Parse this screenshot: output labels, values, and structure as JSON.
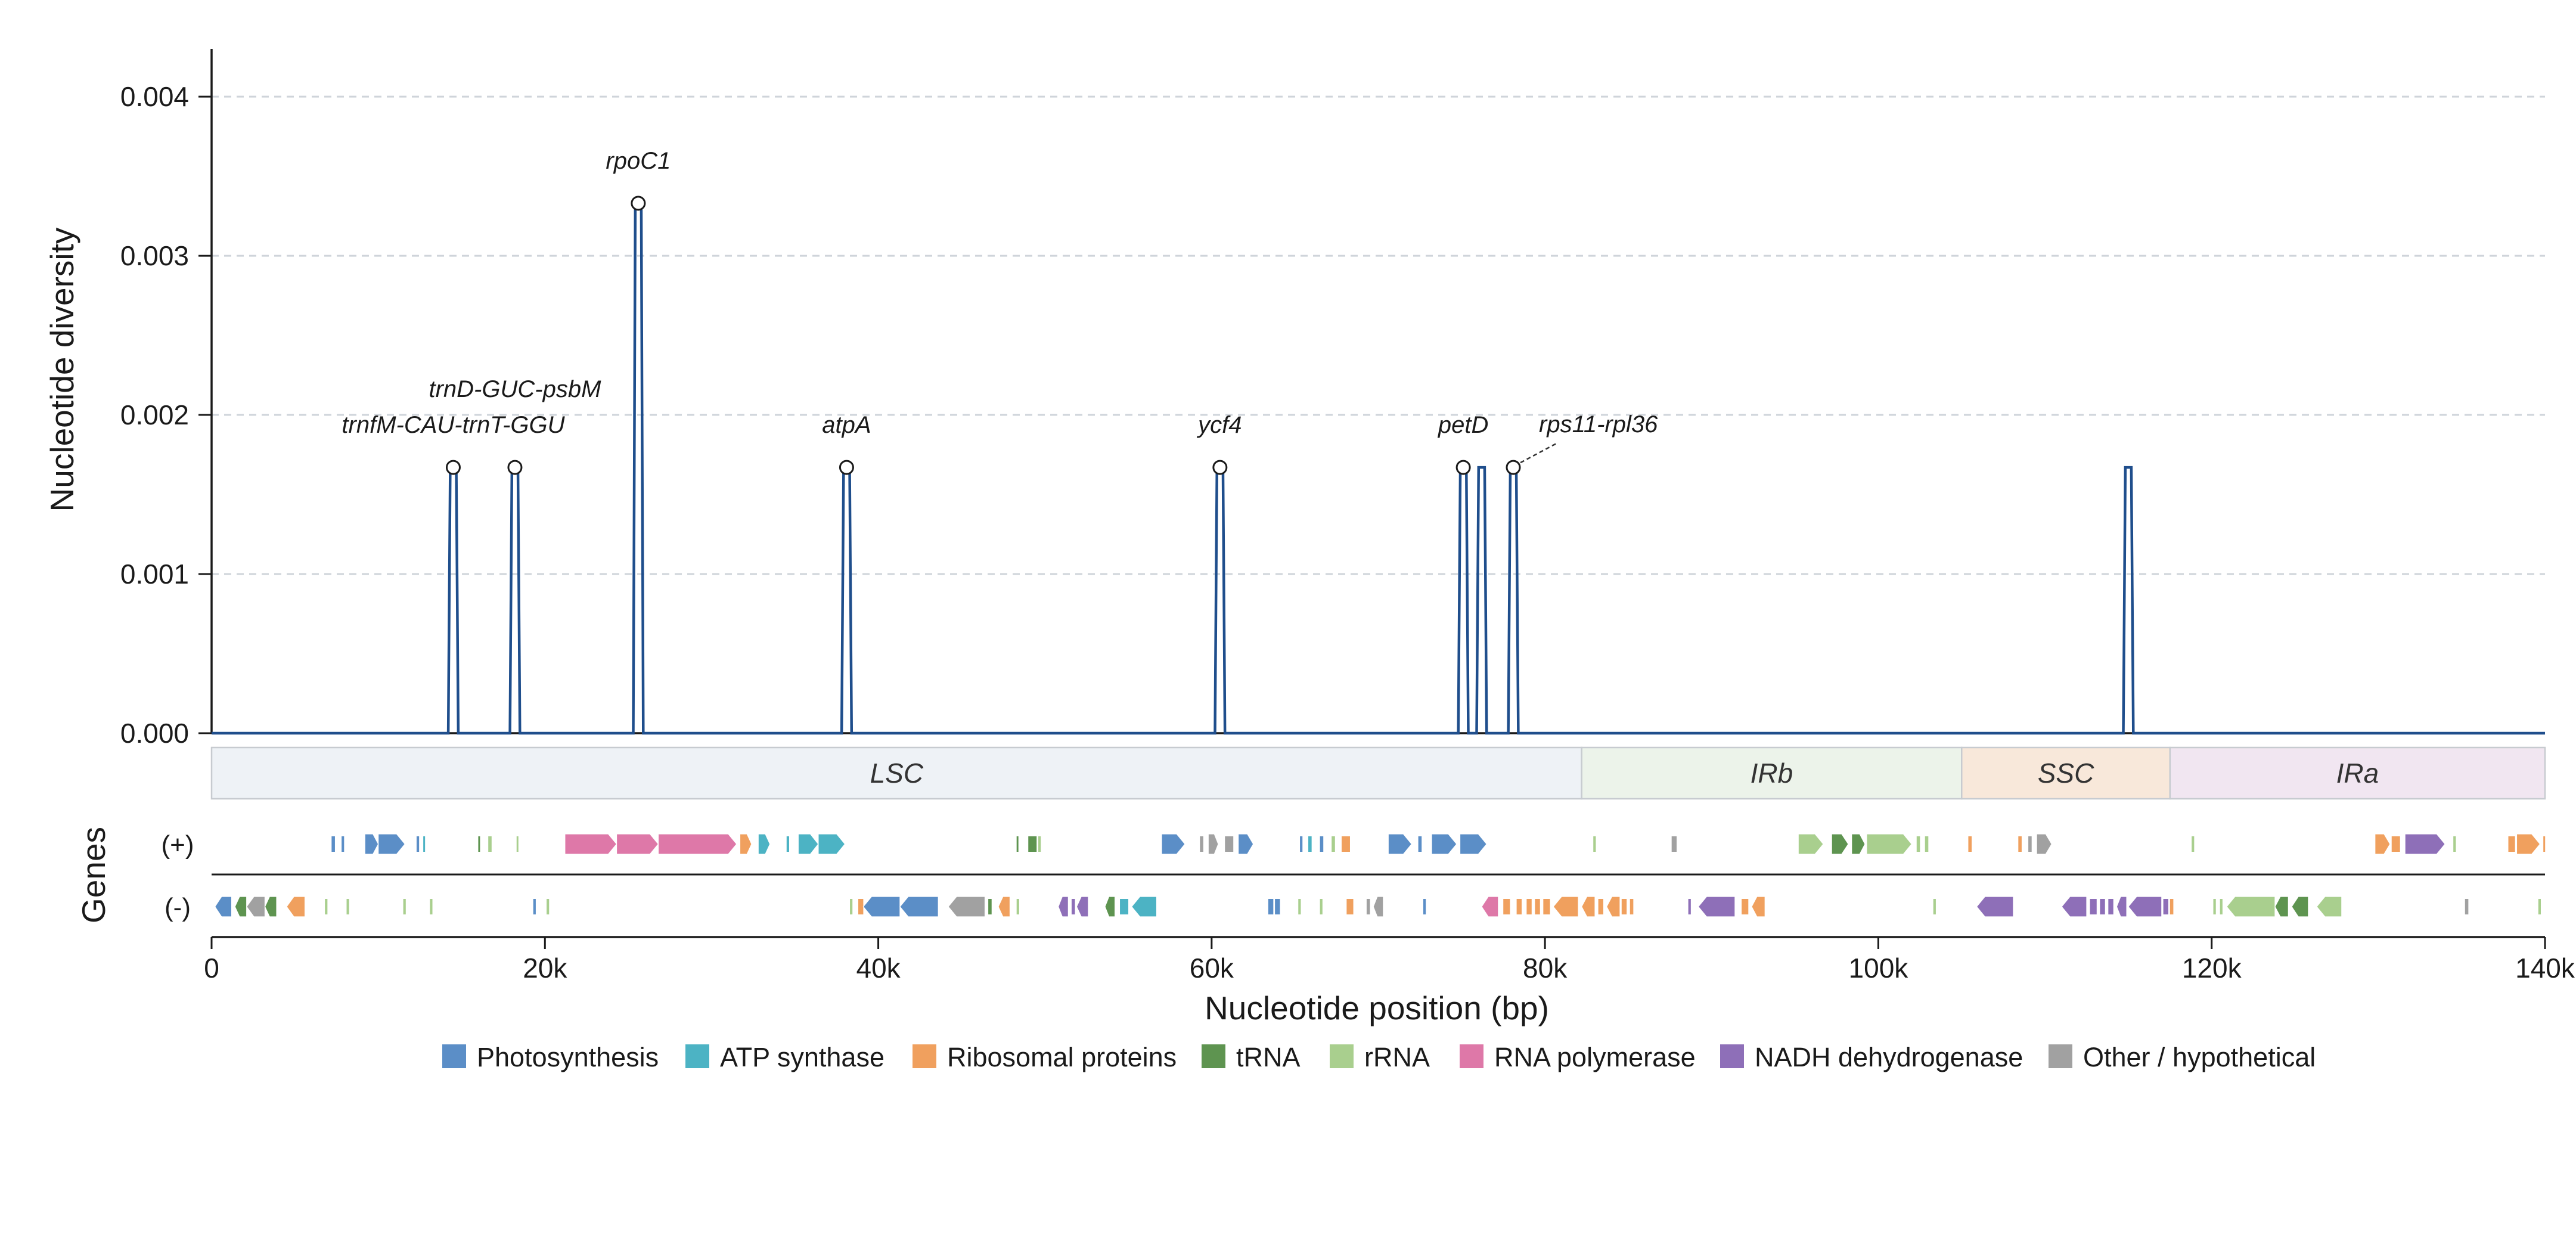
{
  "chart_data": {
    "type": "line",
    "ylabel": "Nucleotide diversity",
    "xlabel": "Nucleotide position (bp)",
    "genes_label": "Genes",
    "strand_labels": [
      "(+)",
      "(-)"
    ],
    "xlim": [
      0,
      140000
    ],
    "ylim": [
      0,
      0.0043
    ],
    "yticks": [
      0,
      0.001,
      0.002,
      0.003,
      0.004
    ],
    "ytick_labels": [
      "0.000",
      "0.001",
      "0.002",
      "0.003",
      "0.004"
    ],
    "xticks": [
      0,
      20000,
      40000,
      60000,
      80000,
      100000,
      120000,
      140000
    ],
    "xtick_labels": [
      "0",
      "20k",
      "40k",
      "60k",
      "80k",
      "100k",
      "120k",
      "140k"
    ],
    "grid": "horizontal dashed",
    "line_color": "#1f4e8c",
    "peaks": [
      {
        "start": 14200,
        "end": 14800,
        "pi": 0.00167,
        "label": "trnfM-CAU-trnT-GGU",
        "marked": true
      },
      {
        "start": 17900,
        "end": 18500,
        "pi": 0.00167,
        "label": "trnD-GUC-psbM",
        "marked": true
      },
      {
        "start": 25300,
        "end": 25900,
        "pi": 0.00333,
        "label": "rpoC1",
        "marked": true
      },
      {
        "start": 37800,
        "end": 38400,
        "pi": 0.00167,
        "label": "atpA",
        "marked": true
      },
      {
        "start": 60200,
        "end": 60800,
        "pi": 0.00167,
        "label": "ycf4",
        "marked": true
      },
      {
        "start": 74800,
        "end": 75400,
        "pi": 0.00167,
        "label": "petD",
        "marked": true
      },
      {
        "start": 75900,
        "end": 76500,
        "pi": 0.00167,
        "label": "",
        "marked": false
      },
      {
        "start": 77800,
        "end": 78400,
        "pi": 0.00167,
        "label": "rps11-rpl36",
        "marked": true
      },
      {
        "start": 114700,
        "end": 115300,
        "pi": 0.00167,
        "label": "",
        "marked": false
      }
    ],
    "regions": [
      {
        "name": "LSC",
        "start": 0,
        "end": 82200,
        "color": "#eef2f6"
      },
      {
        "name": "IRb",
        "start": 82200,
        "end": 105000,
        "color": "#ecf3ea"
      },
      {
        "name": "SSC",
        "start": 105000,
        "end": 117500,
        "color": "#f8e8da"
      },
      {
        "name": "IRa",
        "start": 117500,
        "end": 140000,
        "color": "#f1e6f1"
      }
    ],
    "legend": [
      {
        "name": "Photosynthesis",
        "color": "#5b8ec7"
      },
      {
        "name": "ATP synthase",
        "color": "#4cb3c4"
      },
      {
        "name": "Ribosomal proteins",
        "color": "#f0a05e"
      },
      {
        "name": "tRNA",
        "color": "#5e9450"
      },
      {
        "name": "rRNA",
        "color": "#a9cf8e"
      },
      {
        "name": "RNA polymerase",
        "color": "#de78a8"
      },
      {
        "name": "NADH dehydrogenase",
        "color": "#8e6fb8"
      },
      {
        "name": "Other / hypothetical",
        "color": "#a1a1a1"
      }
    ],
    "genes_plus": [
      {
        "s": 7200,
        "e": 7400,
        "c": 0
      },
      {
        "s": 7800,
        "e": 7950,
        "c": 0
      },
      {
        "s": 9200,
        "e": 10000,
        "c": 0
      },
      {
        "s": 10000,
        "e": 11600,
        "c": 0
      },
      {
        "s": 12300,
        "e": 12450,
        "c": 0
      },
      {
        "s": 12700,
        "e": 12800,
        "c": 1
      },
      {
        "s": 16000,
        "e": 16100,
        "c": 3
      },
      {
        "s": 16600,
        "e": 16800,
        "c": 4
      },
      {
        "s": 18300,
        "e": 18400,
        "c": 4
      },
      {
        "s": 21200,
        "e": 24300,
        "c": 5
      },
      {
        "s": 24300,
        "e": 26800,
        "c": 5
      },
      {
        "s": 26800,
        "e": 31500,
        "c": 5
      },
      {
        "s": 31700,
        "e": 32400,
        "c": 2
      },
      {
        "s": 32800,
        "e": 33500,
        "c": 1
      },
      {
        "s": 34500,
        "e": 34650,
        "c": 1
      },
      {
        "s": 35200,
        "e": 36400,
        "c": 1
      },
      {
        "s": 36400,
        "e": 38000,
        "c": 1
      },
      {
        "s": 48300,
        "e": 48400,
        "c": 3
      },
      {
        "s": 49000,
        "e": 49500,
        "c": 3
      },
      {
        "s": 49600,
        "e": 49750,
        "c": 4
      },
      {
        "s": 57000,
        "e": 58400,
        "c": 0
      },
      {
        "s": 59300,
        "e": 59500,
        "c": 7
      },
      {
        "s": 59800,
        "e": 60400,
        "c": 7
      },
      {
        "s": 60800,
        "e": 61300,
        "c": 7
      },
      {
        "s": 61600,
        "e": 62500,
        "c": 0
      },
      {
        "s": 65300,
        "e": 65450,
        "c": 0
      },
      {
        "s": 65800,
        "e": 66000,
        "c": 1
      },
      {
        "s": 66500,
        "e": 66700,
        "c": 0
      },
      {
        "s": 67200,
        "e": 67400,
        "c": 4
      },
      {
        "s": 67800,
        "e": 68300,
        "c": 2
      },
      {
        "s": 70600,
        "e": 72000,
        "c": 0
      },
      {
        "s": 72400,
        "e": 72600,
        "c": 0
      },
      {
        "s": 73200,
        "e": 74700,
        "c": 0
      },
      {
        "s": 74900,
        "e": 76500,
        "c": 0
      },
      {
        "s": 82900,
        "e": 83050,
        "c": 4
      },
      {
        "s": 87600,
        "e": 87900,
        "c": 7
      },
      {
        "s": 95200,
        "e": 96700,
        "c": 4
      },
      {
        "s": 97200,
        "e": 98200,
        "c": 3
      },
      {
        "s": 98400,
        "e": 99200,
        "c": 3
      },
      {
        "s": 99300,
        "e": 102000,
        "c": 4
      },
      {
        "s": 102300,
        "e": 102500,
        "c": 4
      },
      {
        "s": 102800,
        "e": 103000,
        "c": 4
      },
      {
        "s": 105400,
        "e": 105600,
        "c": 2
      },
      {
        "s": 108400,
        "e": 108600,
        "c": 2
      },
      {
        "s": 109000,
        "e": 109200,
        "c": 7
      },
      {
        "s": 109500,
        "e": 110400,
        "c": 7
      },
      {
        "s": 118800,
        "e": 118950,
        "c": 4
      },
      {
        "s": 129800,
        "e": 130700,
        "c": 2
      },
      {
        "s": 130800,
        "e": 131300,
        "c": 2
      },
      {
        "s": 131600,
        "e": 134000,
        "c": 6
      },
      {
        "s": 134500,
        "e": 134650,
        "c": 4
      },
      {
        "s": 137800,
        "e": 138200,
        "c": 2
      },
      {
        "s": 138300,
        "e": 139700,
        "c": 2
      },
      {
        "s": 139900,
        "e": 140000,
        "c": 2
      }
    ],
    "genes_minus": [
      {
        "s": 200,
        "e": 1200,
        "c": 0
      },
      {
        "s": 1400,
        "e": 2100,
        "c": 3
      },
      {
        "s": 2100,
        "e": 3200,
        "c": 7
      },
      {
        "s": 3200,
        "e": 3900,
        "c": 3
      },
      {
        "s": 4500,
        "e": 5600,
        "c": 2
      },
      {
        "s": 6800,
        "e": 6950,
        "c": 4
      },
      {
        "s": 8100,
        "e": 8250,
        "c": 4
      },
      {
        "s": 11500,
        "e": 11650,
        "c": 4
      },
      {
        "s": 13100,
        "e": 13250,
        "c": 4
      },
      {
        "s": 19300,
        "e": 19450,
        "c": 0
      },
      {
        "s": 20100,
        "e": 20250,
        "c": 4
      },
      {
        "s": 38300,
        "e": 38450,
        "c": 4
      },
      {
        "s": 38800,
        "e": 39100,
        "c": 2
      },
      {
        "s": 39100,
        "e": 41300,
        "c": 0
      },
      {
        "s": 41300,
        "e": 43600,
        "c": 0
      },
      {
        "s": 44200,
        "e": 46400,
        "c": 7
      },
      {
        "s": 46600,
        "e": 46800,
        "c": 3
      },
      {
        "s": 47200,
        "e": 47900,
        "c": 2
      },
      {
        "s": 48300,
        "e": 48450,
        "c": 4
      },
      {
        "s": 50800,
        "e": 51400,
        "c": 6
      },
      {
        "s": 51600,
        "e": 51800,
        "c": 6
      },
      {
        "s": 51900,
        "e": 52600,
        "c": 6
      },
      {
        "s": 53600,
        "e": 54200,
        "c": 3
      },
      {
        "s": 54500,
        "e": 55000,
        "c": 1
      },
      {
        "s": 55200,
        "e": 56700,
        "c": 1
      },
      {
        "s": 63400,
        "e": 63700,
        "c": 0
      },
      {
        "s": 63800,
        "e": 64100,
        "c": 0
      },
      {
        "s": 65200,
        "e": 65350,
        "c": 4
      },
      {
        "s": 66500,
        "e": 66650,
        "c": 4
      },
      {
        "s": 68100,
        "e": 68500,
        "c": 2
      },
      {
        "s": 69300,
        "e": 69500,
        "c": 7
      },
      {
        "s": 69700,
        "e": 70300,
        "c": 7
      },
      {
        "s": 72700,
        "e": 72850,
        "c": 0
      },
      {
        "s": 76200,
        "e": 77200,
        "c": 5
      },
      {
        "s": 77500,
        "e": 77900,
        "c": 2
      },
      {
        "s": 78300,
        "e": 78600,
        "c": 2
      },
      {
        "s": 78900,
        "e": 79200,
        "c": 2
      },
      {
        "s": 79400,
        "e": 79700,
        "c": 2
      },
      {
        "s": 79900,
        "e": 80300,
        "c": 2
      },
      {
        "s": 80500,
        "e": 82000,
        "c": 2
      },
      {
        "s": 82200,
        "e": 83000,
        "c": 2
      },
      {
        "s": 83200,
        "e": 83500,
        "c": 2
      },
      {
        "s": 83700,
        "e": 84500,
        "c": 2
      },
      {
        "s": 84600,
        "e": 84900,
        "c": 2
      },
      {
        "s": 85100,
        "e": 85300,
        "c": 2
      },
      {
        "s": 88600,
        "e": 88750,
        "c": 6
      },
      {
        "s": 89200,
        "e": 91400,
        "c": 6
      },
      {
        "s": 91800,
        "e": 92200,
        "c": 2
      },
      {
        "s": 92400,
        "e": 93200,
        "c": 2
      },
      {
        "s": 103300,
        "e": 103450,
        "c": 4
      },
      {
        "s": 105900,
        "e": 108100,
        "c": 6
      },
      {
        "s": 111000,
        "e": 112500,
        "c": 6
      },
      {
        "s": 112700,
        "e": 113100,
        "c": 6
      },
      {
        "s": 113300,
        "e": 113600,
        "c": 6
      },
      {
        "s": 113800,
        "e": 114100,
        "c": 6
      },
      {
        "s": 114300,
        "e": 114900,
        "c": 6
      },
      {
        "s": 115000,
        "e": 117000,
        "c": 6
      },
      {
        "s": 117100,
        "e": 117400,
        "c": 6
      },
      {
        "s": 117500,
        "e": 117700,
        "c": 2
      },
      {
        "s": 120100,
        "e": 120250,
        "c": 4
      },
      {
        "s": 120500,
        "e": 120650,
        "c": 4
      },
      {
        "s": 120900,
        "e": 123800,
        "c": 4
      },
      {
        "s": 123800,
        "e": 124600,
        "c": 3
      },
      {
        "s": 124800,
        "e": 125800,
        "c": 3
      },
      {
        "s": 126300,
        "e": 127800,
        "c": 4
      },
      {
        "s": 135200,
        "e": 135400,
        "c": 7
      },
      {
        "s": 139600,
        "e": 139750,
        "c": 4
      }
    ]
  }
}
